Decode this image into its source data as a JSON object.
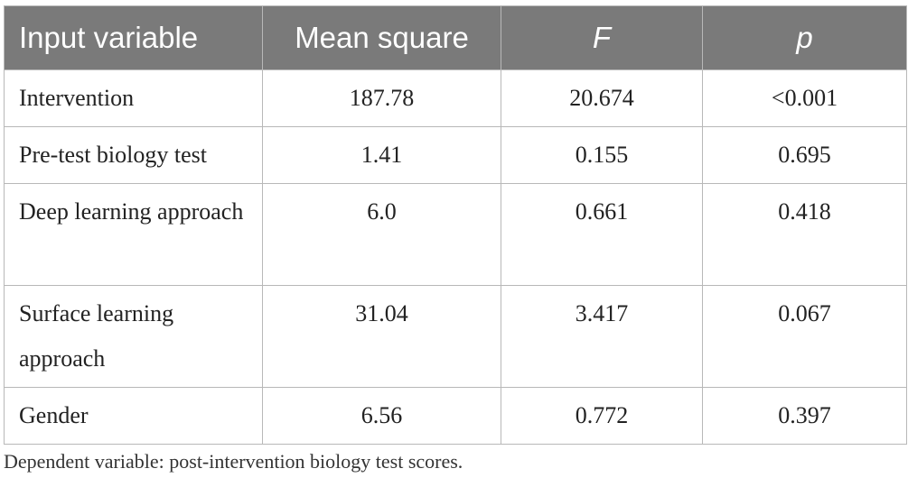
{
  "table": {
    "headers": [
      "Input variable",
      "Mean square",
      "F",
      "p"
    ],
    "rows": [
      {
        "label": "Intervention",
        "mean_square": "187.78",
        "f": "20.674",
        "p": "<0.001"
      },
      {
        "label": "Pre-test biology test",
        "mean_square": "1.41",
        "f": "0.155",
        "p": "0.695"
      },
      {
        "label": "Deep learning approach",
        "mean_square": "6.0",
        "f": "0.661",
        "p": "0.418"
      },
      {
        "label": "Surface learning approach",
        "mean_square": "31.04",
        "f": "3.417",
        "p": "0.067"
      },
      {
        "label": "Gender",
        "mean_square": "6.56",
        "f": "0.772",
        "p": "0.397"
      }
    ]
  },
  "footnote": "Dependent variable: post-intervention biology test scores."
}
